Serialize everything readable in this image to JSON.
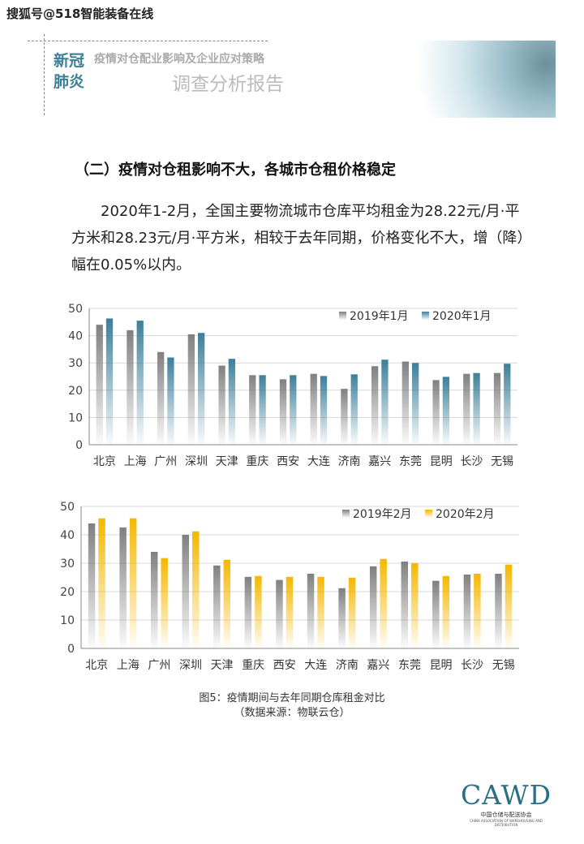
{
  "watermark": "搜狐号@518智能装备在线",
  "header": {
    "tag": "新冠\n肺炎",
    "tag_line1": "新冠",
    "tag_line2": "肺炎",
    "subtitle": "疫情对仓配业影响及企业应对策略",
    "title": "调查分析报告"
  },
  "section_heading": "（二）疫情对仓租影响不大，各城市仓租价格稳定",
  "paragraph": "2020年1-2月，全国主要物流城市仓库平均租金为28.22元/月·平方米和28.23元/月·平方米，相较于去年同期，价格变化不大，增（降）幅在0.05%以内。",
  "caption_line1": "图5：疫情期间与去年同期仓库租金对比",
  "caption_line2": "（数据来源：物联云仓）",
  "logo": {
    "text": "CAWD",
    "cn": "中国仓储与配送协会",
    "en": "CHINA ASSOCIATION OF WAREHOUSING AND DISTRIBUTION"
  },
  "chart_data": [
    {
      "type": "bar",
      "title": "",
      "xlabel": "",
      "ylabel": "",
      "ylim": [
        0,
        50
      ],
      "yticks": [
        0,
        10,
        20,
        30,
        40,
        50
      ],
      "grid": true,
      "legend": "top-right",
      "categories": [
        "北京",
        "上海",
        "广州",
        "深圳",
        "天津",
        "重庆",
        "西安",
        "大连",
        "济南",
        "嘉兴",
        "东莞",
        "昆明",
        "长沙",
        "无锡"
      ],
      "series": [
        {
          "name": "2019年1月",
          "color": "#808080",
          "values": [
            44,
            42,
            34,
            40.5,
            29,
            25.5,
            24,
            26,
            20.5,
            28.8,
            30.5,
            23.7,
            26,
            26.3
          ]
        },
        {
          "name": "2020年1月",
          "color": "#3c7f99",
          "values": [
            46.3,
            45.5,
            32,
            41,
            31.5,
            25.5,
            25.5,
            25.2,
            25.8,
            31.2,
            30,
            24.9,
            26.3,
            29.7
          ]
        }
      ]
    },
    {
      "type": "bar",
      "title": "",
      "xlabel": "",
      "ylabel": "",
      "ylim": [
        0,
        50
      ],
      "yticks": [
        0,
        10,
        20,
        30,
        40,
        50
      ],
      "grid": true,
      "legend": "top-right",
      "categories": [
        "北京",
        "上海",
        "广州",
        "深圳",
        "天津",
        "重庆",
        "西安",
        "大连",
        "济南",
        "嘉兴",
        "东莞",
        "昆明",
        "长沙",
        "无锡"
      ],
      "series": [
        {
          "name": "2019年2月",
          "color": "#808080",
          "values": [
            44,
            42.6,
            34,
            40,
            29.2,
            25.2,
            24.1,
            26.3,
            21.2,
            28.9,
            30.6,
            23.8,
            26,
            26.3
          ]
        },
        {
          "name": "2020年2月",
          "color": "#f5b700",
          "values": [
            45.8,
            45.8,
            31.8,
            41.2,
            31.2,
            25.5,
            25.2,
            25.2,
            24.9,
            31.5,
            30,
            25.5,
            26.3,
            29.5
          ]
        }
      ]
    }
  ]
}
